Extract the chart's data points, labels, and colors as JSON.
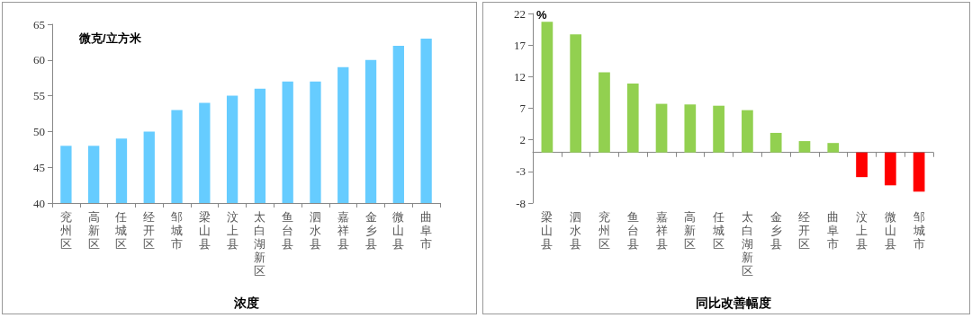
{
  "chart_data": [
    {
      "type": "bar",
      "xlabel": "浓度",
      "ylabel": "微克/立方米",
      "categories": [
        "兖州区",
        "高新区",
        "任城区",
        "经开区",
        "邹城市",
        "梁山县",
        "汶上县",
        "太白湖新区",
        "鱼台县",
        "泗水县",
        "嘉祥县",
        "金乡县",
        "微山县",
        "曲阜市"
      ],
      "values": [
        48,
        48,
        49,
        50,
        53,
        54,
        55,
        56,
        57,
        57,
        59,
        60,
        62,
        63
      ],
      "color": "#66ccff",
      "ylim": [
        40,
        65
      ],
      "yticks": [
        40,
        45,
        50,
        55,
        60,
        65
      ]
    },
    {
      "type": "bar",
      "xlabel": "同比改善幅度",
      "ylabel": "%",
      "categories": [
        "梁山县",
        "泗水县",
        "兖州区",
        "鱼台县",
        "嘉祥县",
        "高新区",
        "任城区",
        "太白湖新区",
        "金乡县",
        "经开区",
        "曲阜市",
        "汶上县",
        "微山县",
        "邹城市"
      ],
      "values": [
        20.7,
        18.7,
        12.7,
        10.9,
        7.7,
        7.6,
        7.4,
        6.7,
        3.1,
        1.8,
        1.5,
        -3.9,
        -5.2,
        -6.2
      ],
      "colors": [
        "#92d050",
        "#92d050",
        "#92d050",
        "#92d050",
        "#92d050",
        "#92d050",
        "#92d050",
        "#92d050",
        "#92d050",
        "#92d050",
        "#92d050",
        "#ff0000",
        "#ff0000",
        "#ff0000"
      ],
      "ylim": [
        -8,
        22
      ],
      "yticks": [
        -8,
        -3,
        2,
        7,
        12,
        17,
        22
      ]
    }
  ]
}
